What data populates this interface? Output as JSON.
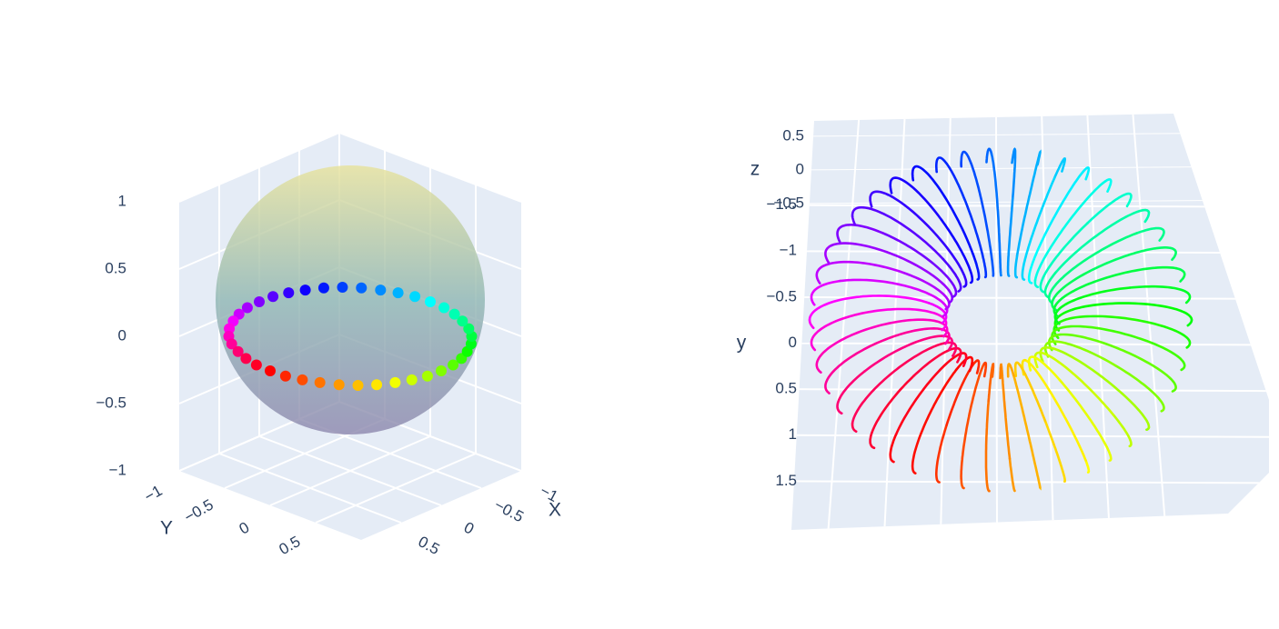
{
  "chart_data": [
    {
      "type": "scatter3d",
      "surface": "sphere",
      "colorscale": "hsv",
      "xaxis_title": "X",
      "yaxis_title": "Y",
      "x": [
        1,
        0.99,
        0.95,
        0.89,
        0.81,
        0.71,
        0.59,
        0.45,
        0.31,
        0.16,
        0,
        -0.16,
        -0.31,
        -0.45,
        -0.59,
        -0.71,
        -0.81,
        -0.89,
        -0.95,
        -0.99,
        -1,
        -0.99,
        -0.95,
        -0.89,
        -0.81,
        -0.71,
        -0.59,
        -0.45,
        -0.31,
        -0.16,
        0,
        0.16,
        0.31,
        0.45,
        0.59,
        0.71,
        0.81,
        0.89,
        0.95,
        0.99
      ],
      "y": [
        0,
        0.16,
        0.31,
        0.45,
        0.59,
        0.71,
        0.81,
        0.89,
        0.95,
        0.99,
        1,
        0.99,
        0.95,
        0.89,
        0.81,
        0.71,
        0.59,
        0.45,
        0.31,
        0.16,
        0,
        -0.16,
        -0.31,
        -0.45,
        -0.59,
        -0.71,
        -0.81,
        -0.89,
        -0.95,
        -0.99,
        -1,
        -0.99,
        -0.95,
        -0.89,
        -0.81,
        -0.71,
        -0.59,
        -0.45,
        -0.31,
        -0.16
      ],
      "z": [
        0,
        0,
        0,
        0,
        0,
        0,
        0,
        0,
        0,
        0,
        0,
        0,
        0,
        0,
        0,
        0,
        0,
        0,
        0,
        0,
        0,
        0,
        0,
        0,
        0,
        0,
        0,
        0,
        0,
        0,
        0,
        0,
        0,
        0,
        0,
        0,
        0,
        0,
        0,
        0
      ],
      "xlim": [
        -1,
        1
      ],
      "ylim": [
        -1,
        1
      ],
      "zlim": [
        -1,
        1
      ],
      "xticks": [
        {
          "value": -1,
          "label": "−1"
        },
        {
          "value": -0.5,
          "label": "−0.5"
        },
        0,
        0.5
      ],
      "yticks": [
        {
          "value": -1,
          "label": "−1"
        },
        {
          "value": -0.5,
          "label": "−0.5"
        },
        0,
        0.5
      ],
      "zticks": [
        {
          "value": -1,
          "label": "−1"
        },
        {
          "value": -0.5,
          "label": "−0.5"
        },
        0,
        0.5,
        1
      ]
    },
    {
      "type": "line3d",
      "colorscale": "hsv",
      "zaxis_title": "z",
      "yaxis_title": "y",
      "zlim": [
        -1,
        1
      ],
      "ylim": [
        -2,
        2
      ],
      "zticks": [
        0.5,
        0,
        {
          "value": -0.5,
          "label": "−0.5"
        }
      ],
      "yticks": [
        {
          "value": -1.5,
          "label": "−1.5"
        },
        {
          "value": -1,
          "label": "−1"
        },
        {
          "value": -0.5,
          "label": "−0.5"
        },
        0,
        0.5,
        1,
        1.5
      ]
    }
  ]
}
